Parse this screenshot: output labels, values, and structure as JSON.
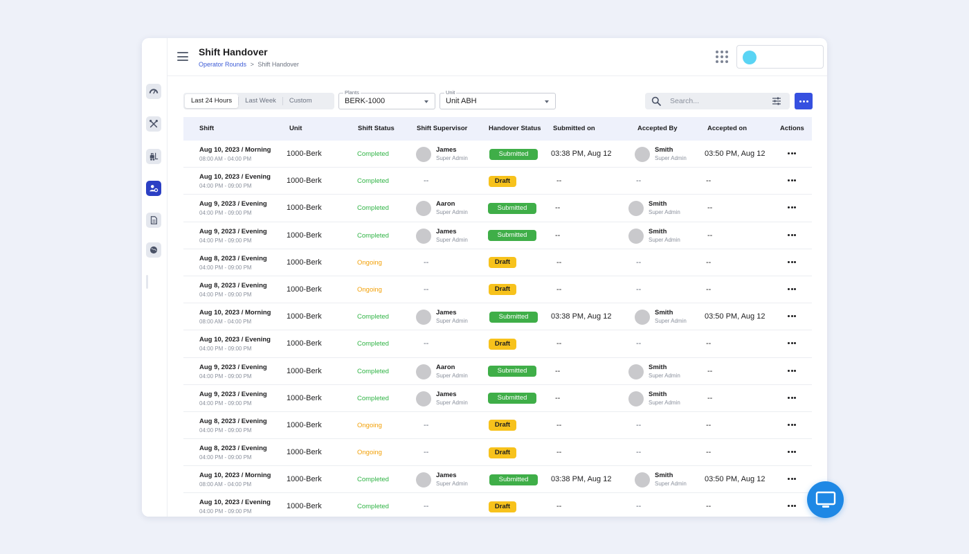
{
  "header": {
    "title": "Shift Handover",
    "breadcrumb": {
      "link": "Operator Rounds",
      "separator": ">",
      "current": "Shift Handover"
    }
  },
  "sidebar": {
    "items": [
      {
        "icon": "gauge-icon"
      },
      {
        "icon": "tools-icon"
      },
      {
        "icon": "forklift-icon"
      },
      {
        "icon": "user-settings-icon",
        "active": true
      },
      {
        "icon": "document-icon"
      },
      {
        "icon": "globe-icon"
      }
    ]
  },
  "filters": {
    "ranges": [
      "Last 24 Hours",
      "Last Week",
      "Custom"
    ],
    "plants": {
      "label": "Plants",
      "value": "BERK-1000"
    },
    "unit": {
      "label": "Unit",
      "value": "Unit ABH"
    },
    "search": {
      "placeholder": "Search..."
    }
  },
  "table": {
    "columns": [
      "Shift",
      "Unit",
      "Shift Status",
      "Shift Supervisor",
      "Handover Status",
      "Submitted on",
      "Accepted By",
      "Accepted on",
      "Actions"
    ],
    "rows": [
      {
        "shift": "Aug 10, 2023 / Morning",
        "time": "08:00 AM - 04:00 PM",
        "unit": "1000-Berk",
        "status": "Completed",
        "supervisor": {
          "name": "James",
          "role": "Super Admin"
        },
        "handover": "Submitted",
        "submitted_on": "03:38 PM, Aug 12",
        "accepted_by": {
          "name": "Smith",
          "role": "Super Admin"
        },
        "accepted_on": "03:50 PM, Aug 12"
      },
      {
        "shift": "Aug 10, 2023 / Evening",
        "time": "04:00 PM - 09:00 PM",
        "unit": "1000-Berk",
        "status": "Completed",
        "supervisor": null,
        "handover": "Draft",
        "submitted_on": "--",
        "accepted_by": null,
        "accepted_on": "--"
      },
      {
        "shift": "Aug 9, 2023 / Evening",
        "time": "04:00 PM - 09:00 PM",
        "unit": "1000-Berk",
        "status": "Completed",
        "supervisor": {
          "name": "Aaron",
          "role": "Super Admin"
        },
        "handover": "Submitted",
        "submitted_on": "--",
        "accepted_by": {
          "name": "Smith",
          "role": "Super Admin"
        },
        "accepted_on": "--"
      },
      {
        "shift": "Aug 9, 2023 / Evening",
        "time": "04:00 PM - 09:00 PM",
        "unit": "1000-Berk",
        "status": "Completed",
        "supervisor": {
          "name": "James",
          "role": "Super Admin"
        },
        "handover": "Submitted",
        "submitted_on": "--",
        "accepted_by": {
          "name": "Smith",
          "role": "Super Admin"
        },
        "accepted_on": "--"
      },
      {
        "shift": "Aug 8, 2023 / Evening",
        "time": "04:00 PM - 09:00 PM",
        "unit": "1000-Berk",
        "status": "Ongoing",
        "supervisor": null,
        "handover": "Draft",
        "submitted_on": "--",
        "accepted_by": null,
        "accepted_on": "--"
      },
      {
        "shift": "Aug 8, 2023 / Evening",
        "time": "04:00 PM - 09:00 PM",
        "unit": "1000-Berk",
        "status": "Ongoing",
        "supervisor": null,
        "handover": "Draft",
        "submitted_on": "--",
        "accepted_by": null,
        "accepted_on": "--"
      },
      {
        "shift": "Aug 10, 2023 / Morning",
        "time": "08:00 AM - 04:00 PM",
        "unit": "1000-Berk",
        "status": "Completed",
        "supervisor": {
          "name": "James",
          "role": "Super Admin"
        },
        "handover": "Submitted",
        "submitted_on": "03:38 PM, Aug 12",
        "accepted_by": {
          "name": "Smith",
          "role": "Super Admin"
        },
        "accepted_on": "03:50 PM, Aug 12"
      },
      {
        "shift": "Aug 10, 2023 / Evening",
        "time": "04:00 PM - 09:00 PM",
        "unit": "1000-Berk",
        "status": "Completed",
        "supervisor": null,
        "handover": "Draft",
        "submitted_on": "--",
        "accepted_by": null,
        "accepted_on": "--"
      },
      {
        "shift": "Aug 9, 2023 / Evening",
        "time": "04:00 PM - 09:00 PM",
        "unit": "1000-Berk",
        "status": "Completed",
        "supervisor": {
          "name": "Aaron",
          "role": "Super Admin"
        },
        "handover": "Submitted",
        "submitted_on": "--",
        "accepted_by": {
          "name": "Smith",
          "role": "Super Admin"
        },
        "accepted_on": "--"
      },
      {
        "shift": "Aug 9, 2023 / Evening",
        "time": "04:00 PM - 09:00 PM",
        "unit": "1000-Berk",
        "status": "Completed",
        "supervisor": {
          "name": "James",
          "role": "Super Admin"
        },
        "handover": "Submitted",
        "submitted_on": "--",
        "accepted_by": {
          "name": "Smith",
          "role": "Super Admin"
        },
        "accepted_on": "--"
      },
      {
        "shift": "Aug 8, 2023 / Evening",
        "time": "04:00 PM - 09:00 PM",
        "unit": "1000-Berk",
        "status": "Ongoing",
        "supervisor": null,
        "handover": "Draft",
        "submitted_on": "--",
        "accepted_by": null,
        "accepted_on": "--"
      },
      {
        "shift": "Aug 8, 2023 / Evening",
        "time": "04:00 PM - 09:00 PM",
        "unit": "1000-Berk",
        "status": "Ongoing",
        "supervisor": null,
        "handover": "Draft",
        "submitted_on": "--",
        "accepted_by": null,
        "accepted_on": "--"
      },
      {
        "shift": "Aug 10, 2023 / Morning",
        "time": "08:00 AM - 04:00 PM",
        "unit": "1000-Berk",
        "status": "Completed",
        "supervisor": {
          "name": "James",
          "role": "Super Admin"
        },
        "handover": "Submitted",
        "submitted_on": "03:38 PM, Aug 12",
        "accepted_by": {
          "name": "Smith",
          "role": "Super Admin"
        },
        "accepted_on": "03:50 PM, Aug 12"
      },
      {
        "shift": "Aug 10, 2023 / Evening",
        "time": "04:00 PM - 09:00 PM",
        "unit": "1000-Berk",
        "status": "Completed",
        "supervisor": null,
        "handover": "Draft",
        "submitted_on": "--",
        "accepted_by": null,
        "accepted_on": "--"
      }
    ]
  },
  "colors": {
    "accent": "#3650e0",
    "completed": "#2fb344",
    "ongoing": "#f2a007",
    "submitted": "#3fae48",
    "draft": "#f7c21c"
  },
  "fab": {
    "icon": "monitor-icon"
  }
}
